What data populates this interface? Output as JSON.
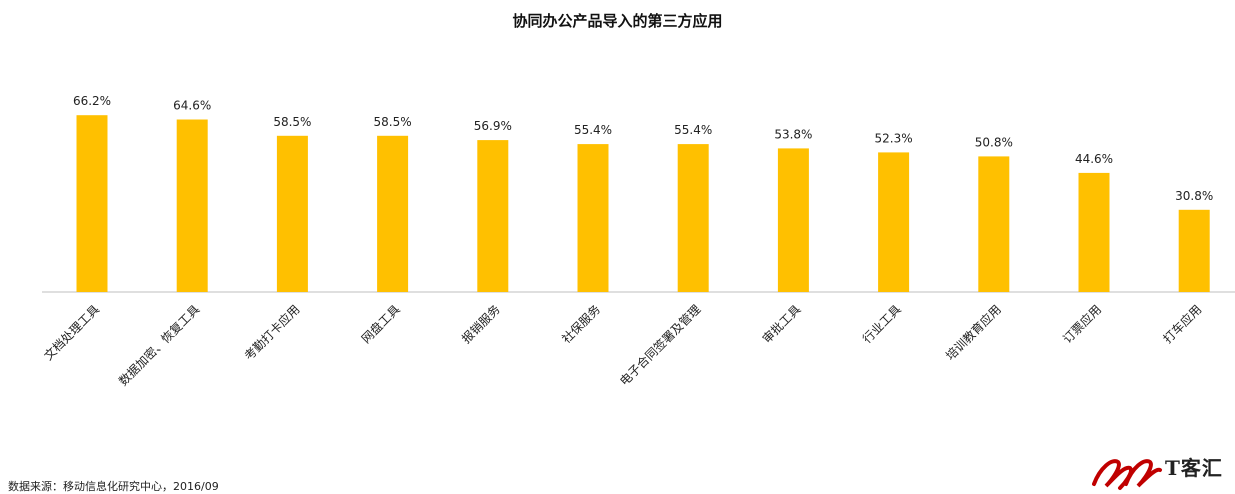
{
  "chart_data": {
    "type": "bar",
    "title": "协同办公产品导入的第三方应用",
    "categories": [
      "文档处理工具",
      "数据加密、恢复工具",
      "考勤打卡应用",
      "网盘工具",
      "报销服务",
      "社保服务",
      "电子合同签署及管理",
      "审批工具",
      "行业工具",
      "培训教育应用",
      "订票应用",
      "打车应用"
    ],
    "values": [
      66.2,
      64.6,
      58.5,
      58.5,
      56.9,
      55.4,
      55.4,
      53.8,
      52.3,
      50.8,
      44.6,
      30.8
    ],
    "value_labels": [
      "66.2%",
      "64.6%",
      "58.5%",
      "58.5%",
      "56.9%",
      "55.4%",
      "55.4%",
      "53.8%",
      "52.3%",
      "50.8%",
      "44.6%",
      "30.8%"
    ],
    "xlabel": "",
    "ylabel": "",
    "ylim": [
      0,
      70
    ],
    "grid": false,
    "bar_color": "#FFC000"
  },
  "footer": {
    "source": "数据来源：移动信息化研究中心，2016/09",
    "brand_text": "T客汇",
    "brand_color": "#C00000"
  }
}
